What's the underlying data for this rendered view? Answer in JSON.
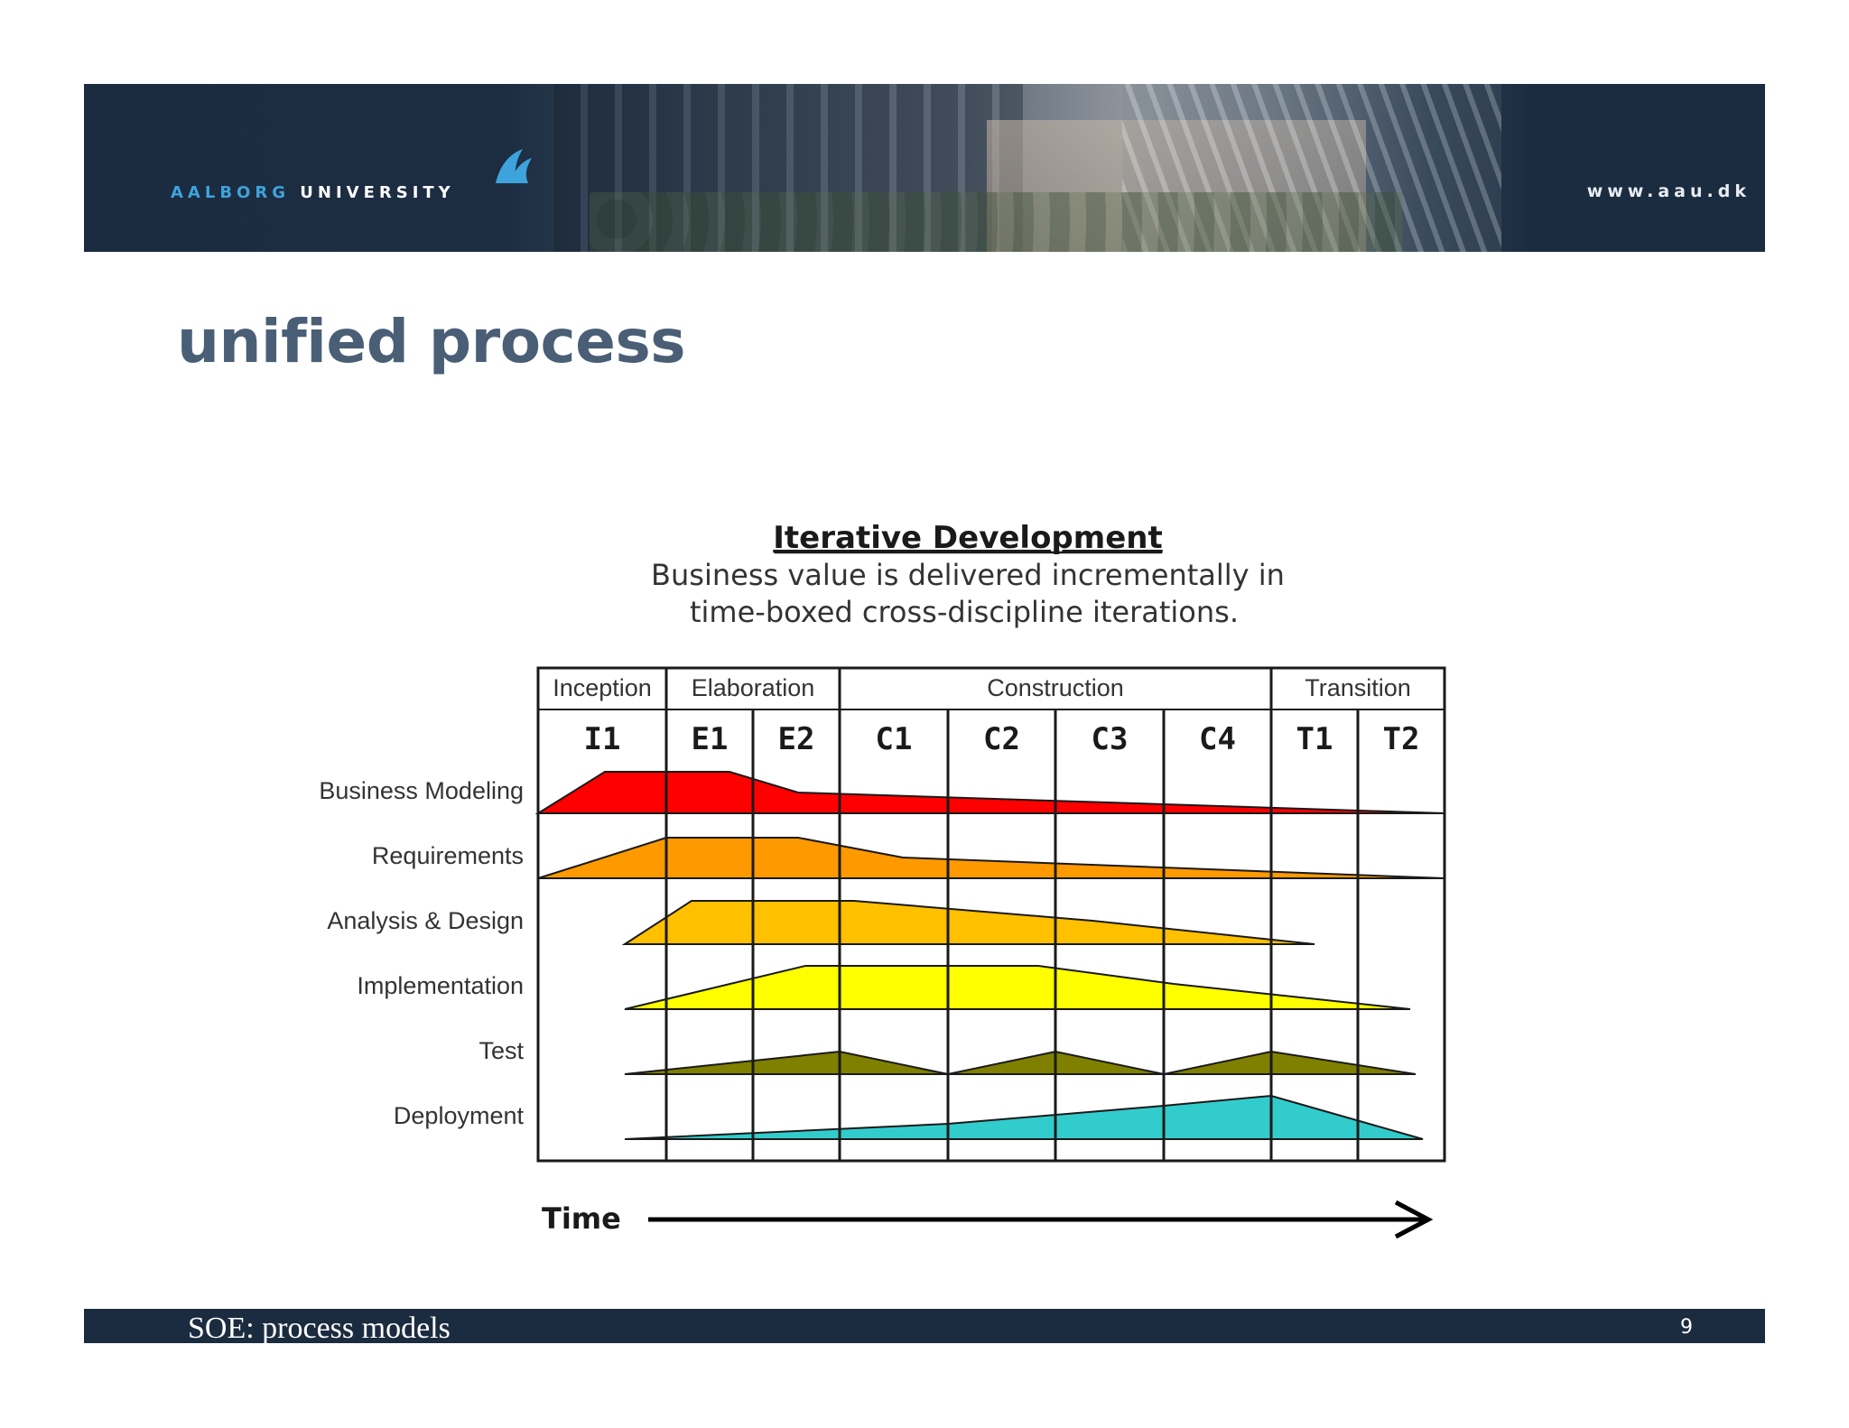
{
  "header": {
    "logo_part1": "AALBORG",
    "logo_part2": "UNIVERSITY",
    "website": "www.aau.dk"
  },
  "slide": {
    "title": "unified process"
  },
  "diagram": {
    "heading": "Iterative Development",
    "subtitle_line1": "Business value is delivered incrementally in",
    "subtitle_line2": "time-boxed cross-discipline iterations.",
    "phases": [
      "Inception",
      "Elaboration",
      "Construction",
      "Transition"
    ],
    "iterations": [
      "I1",
      "E1",
      "E2",
      "C1",
      "C2",
      "C3",
      "C4",
      "T1",
      "T2"
    ],
    "disciplines": [
      {
        "name": "Business Modeling",
        "color": "#ff0000"
      },
      {
        "name": "Requirements",
        "color": "#ff9900"
      },
      {
        "name": "Analysis & Design",
        "color": "#ffc000"
      },
      {
        "name": "Implementation",
        "color": "#ffff00"
      },
      {
        "name": "Test",
        "color": "#808000"
      },
      {
        "name": "Deployment",
        "color": "#33cccc"
      }
    ],
    "time_label": "Time"
  },
  "footer": {
    "course": "SOE: process models",
    "page_number": "9"
  }
}
